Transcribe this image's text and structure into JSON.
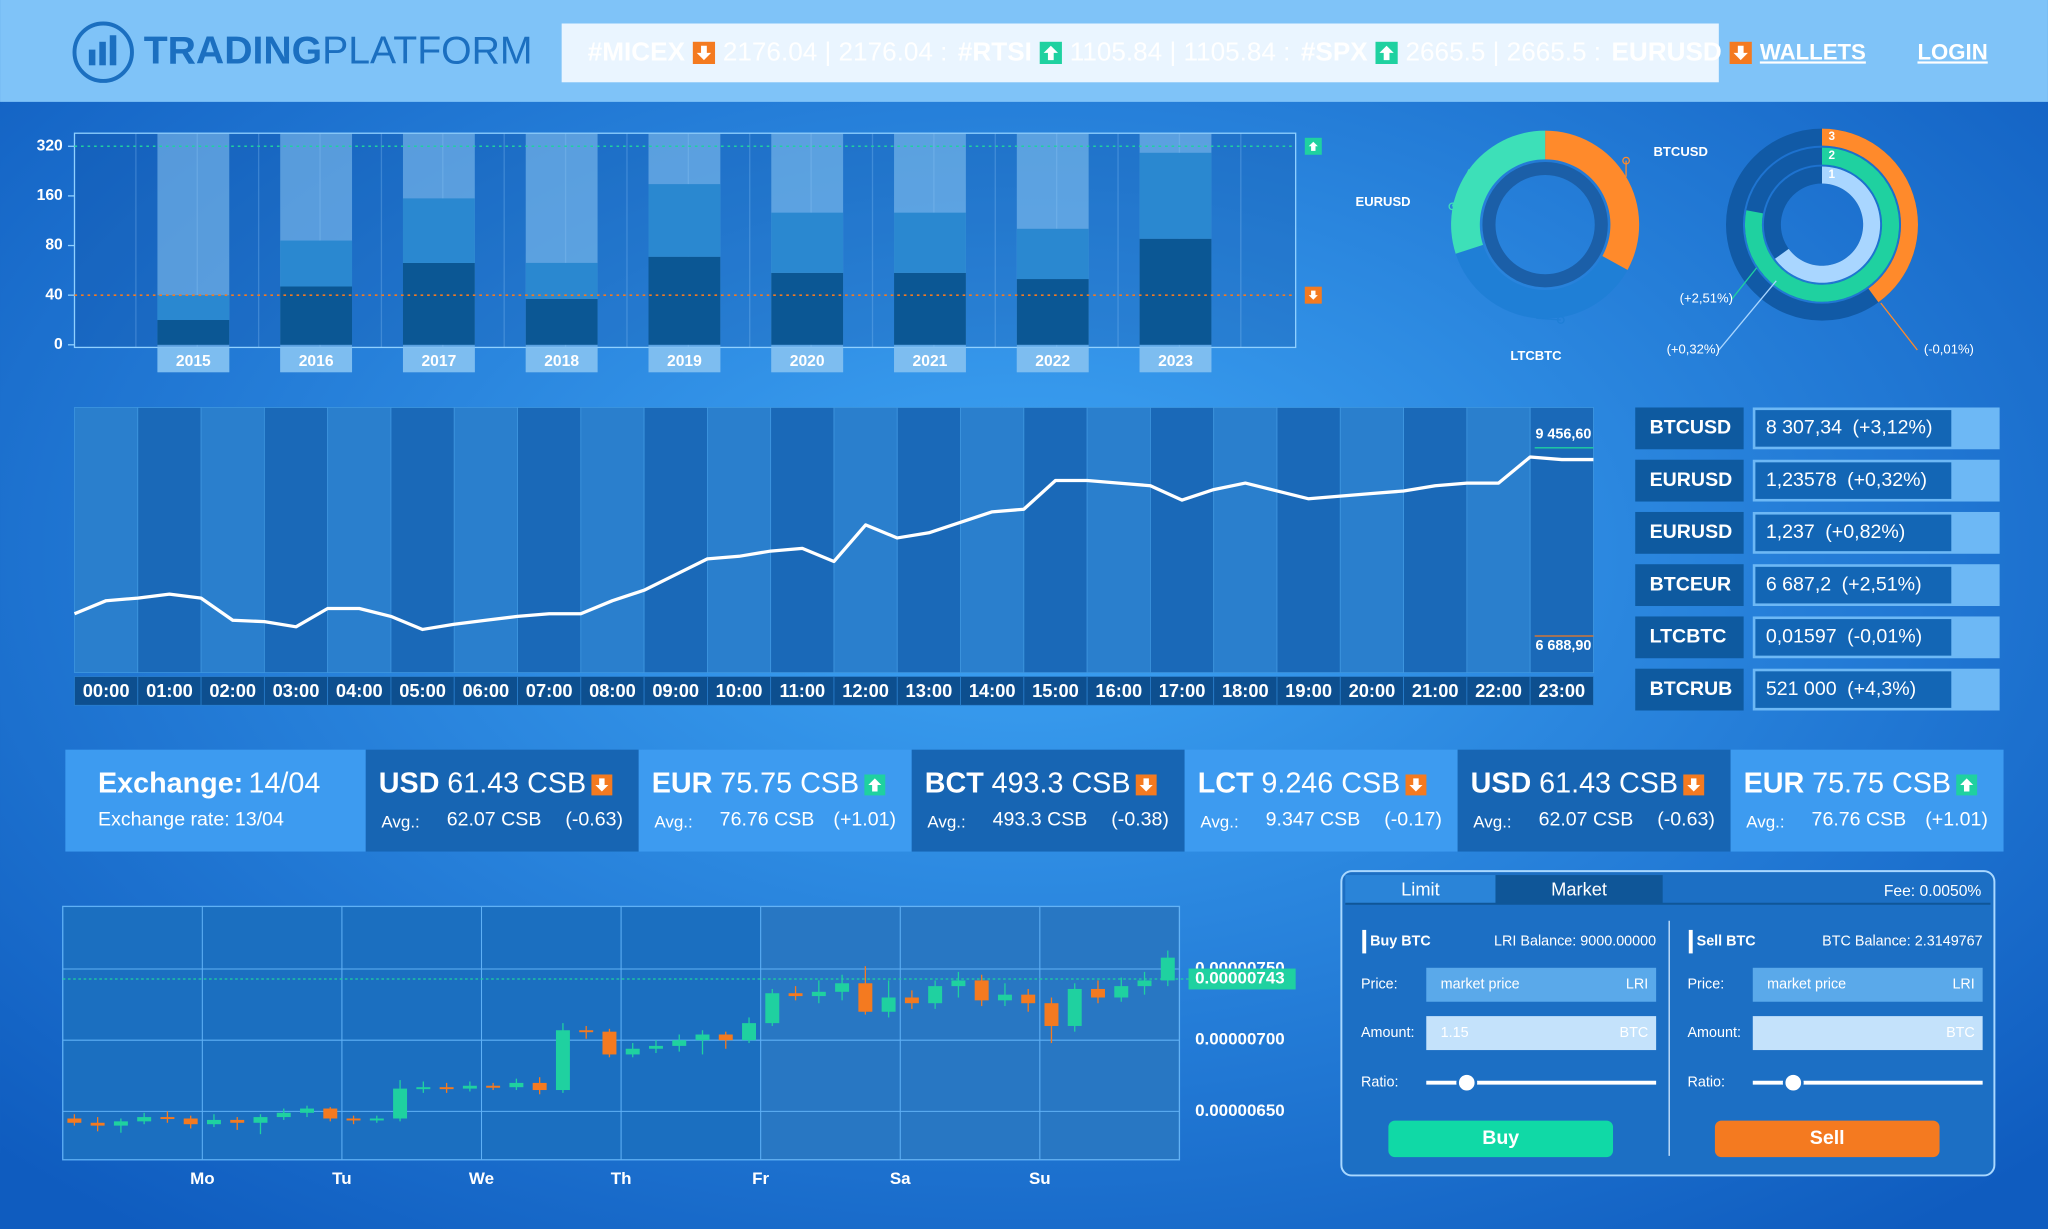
{
  "header": {
    "brand": {
      "bold": "TRADING",
      "light": "PLATFORM"
    },
    "ticker": [
      {
        "symbol": "#MICEX",
        "trend": "down",
        "value": "2176.04 | 2176.04 :"
      },
      {
        "symbol": "#RTSI",
        "trend": "up",
        "value": "1105.84 | 1105.84 :"
      },
      {
        "symbol": "#SPX",
        "trend": "up",
        "value": "2665.5 | 2665.5 :"
      },
      {
        "symbol": "EURUSD",
        "trend": "down"
      }
    ],
    "nav": [
      "WALLETS",
      "LOGIN"
    ]
  },
  "trend_colors": {
    "up": "#1fd1a0",
    "down": "#f47a20"
  },
  "bar_chart": {
    "type": "bar",
    "stacked": true,
    "scale": "piecewise",
    "categories": [
      "2015",
      "2016",
      "2017",
      "2018",
      "2019",
      "2020",
      "2021",
      "2022",
      "2023"
    ],
    "series": [
      {
        "color": "#0b5794",
        "values": [
          20,
          47,
          66,
          37,
          71,
          58,
          58,
          53,
          91
        ]
      },
      {
        "color": "#2a88d0",
        "values": [
          20,
          41,
          90,
          29,
          127,
          75,
          75,
          54,
          208
        ]
      }
    ],
    "ylim": [
      0,
      320
    ],
    "yticks": [
      0,
      40,
      80,
      160,
      320
    ],
    "reference_lines": [
      {
        "value": 320,
        "trend": "up"
      },
      {
        "value": 40,
        "trend": "down"
      }
    ]
  },
  "donut_chart": {
    "type": "pie",
    "categories": [
      "BTCUSD",
      "LTCBTC",
      "EURUSD"
    ],
    "values": [
      33,
      37,
      30
    ],
    "colors": [
      "#ff8a2b",
      "#1f7fd6",
      "#3de0b8"
    ]
  },
  "ring_chart": {
    "type": "radial",
    "range": [
      0,
      100
    ],
    "rings": [
      {
        "label": "3",
        "value": 40,
        "color": "#ff8a2b",
        "note": "(-0,01%)"
      },
      {
        "label": "2",
        "value": 78,
        "color": "#1fd1a0",
        "note": "(+2,51%)"
      },
      {
        "label": "1",
        "value": 65,
        "color": "#a9d6ff",
        "note": "(+0,32%)"
      }
    ]
  },
  "line_chart": {
    "type": "line",
    "color": "#ffffff",
    "highlight": 1,
    "categories": [
      "00:00",
      "01:00",
      "02:00",
      "03:00",
      "04:00",
      "05:00",
      "06:00",
      "07:00",
      "08:00",
      "09:00",
      "10:00",
      "11:00",
      "12:00",
      "13:00",
      "14:00",
      "15:00",
      "16:00",
      "17:00",
      "18:00",
      "19:00",
      "20:00",
      "21:00",
      "22:00",
      "23:00"
    ],
    "x": [
      0,
      0.5,
      1,
      1.5,
      2,
      2.5,
      3,
      3.5,
      4,
      4.5,
      5,
      5.5,
      6,
      6.5,
      7,
      7.5,
      8,
      8.5,
      9,
      9.5,
      10,
      10.5,
      11,
      11.5,
      12,
      12.5,
      13,
      13.5,
      14,
      14.5,
      15,
      15.5,
      16,
      16.5,
      17,
      17.5,
      18,
      18.5,
      19,
      19.5,
      20,
      20.5,
      21,
      21.5,
      22,
      22.5,
      23,
      23.5,
      24
    ],
    "values": [
      7016,
      7208,
      7246,
      7304,
      7246,
      6920,
      6900,
      6824,
      7093,
      7093,
      6977,
      6785,
      6862,
      6920,
      6977,
      7016,
      7016,
      7208,
      7362,
      7592,
      7823,
      7861,
      7938,
      7977,
      7785,
      8323,
      8131,
      8207,
      8361,
      8515,
      8553,
      8976,
      8976,
      8938,
      8899,
      8688,
      8842,
      8938,
      8822,
      8707,
      8746,
      8784,
      8822,
      8899,
      8938,
      8938,
      9322,
      9284,
      9284
    ],
    "xlim": [
      0,
      24
    ],
    "ylim": [
      6150,
      10050
    ],
    "yticks": [
      {
        "value": 6688.9,
        "label": "6 688,90"
      },
      {
        "value": 9456.6,
        "label": "9 456,60"
      }
    ],
    "ytick_colors": [
      "#f47a20",
      "#1fd1a0"
    ]
  },
  "rates": {
    "selected": 0,
    "rows": [
      {
        "pair": "BTCUSD",
        "price": "8 307,34",
        "change": "(+3,12%)",
        "trend": "up"
      },
      {
        "pair": "EURUSD",
        "price": "1,23578",
        "change": "(+0,32%)",
        "trend": "down"
      },
      {
        "pair": "EURUSD",
        "price": "1,237",
        "change": "(+0,82%)",
        "trend": "up"
      },
      {
        "pair": "BTCEUR",
        "price": "6 687,2",
        "change": "(+2,51%)",
        "trend": "up"
      },
      {
        "pair": "LTCBTC",
        "price": "0,01597",
        "change": "(-0,01%)",
        "trend": "down"
      },
      {
        "pair": "BTCRUB",
        "price": "521 000",
        "change": "(+4,3%)",
        "trend": "up"
      }
    ]
  },
  "exchange": {
    "title": {
      "label": "Exchange:",
      "date": "14/04"
    },
    "rate": {
      "label": "Exchange rate:",
      "date": "13/04"
    },
    "cards": [
      {
        "currency": "USD",
        "price": "61.43 CSB",
        "trend": "down",
        "color": "#ffffff",
        "avg_label": "Avg.:",
        "avg": "62.07 CSB",
        "change": "(-0.63)"
      },
      {
        "currency": "EUR",
        "price": "75.75 CSB",
        "trend": "up",
        "color": "#4fd6b0",
        "avg_label": "Avg.:",
        "avg": "76.76 CSB",
        "change": "(+1.01)"
      },
      {
        "currency": "BCT",
        "price": "493.3 CSB",
        "trend": "down",
        "color": "#f47a20",
        "avg_label": "Avg.:",
        "avg": "493.3 CSB",
        "change": "(-0.38)"
      },
      {
        "currency": "LCT",
        "price": "9.246 CSB",
        "trend": "down",
        "color": "#f59a50",
        "avg_label": "Avg.:",
        "avg": "9.347 CSB",
        "change": "(-0.17)"
      },
      {
        "currency": "USD",
        "price": "61.43 CSB",
        "trend": "down",
        "color": "#ffffff",
        "avg_label": "Avg.:",
        "avg": "62.07 CSB",
        "change": "(-0.63)"
      },
      {
        "currency": "EUR",
        "price": "75.75 CSB",
        "trend": "up",
        "color": "#4fd6b0",
        "avg_label": "Avg.:",
        "avg": "76.76 CSB",
        "change": "(+1.01)"
      }
    ]
  },
  "candle_chart": {
    "type": "candlestick",
    "categories": [
      "Mo",
      "Tu",
      "We",
      "Th",
      "Fr",
      "Sa",
      "Su"
    ],
    "open": [
      6.45e-06,
      6.42e-06,
      6.4e-06,
      6.43e-06,
      6.46e-06,
      6.45e-06,
      6.41e-06,
      6.44e-06,
      6.42e-06,
      6.46e-06,
      6.49e-06,
      6.52e-06,
      6.45e-06,
      6.44e-06,
      6.45e-06,
      6.66e-06,
      6.67e-06,
      6.66e-06,
      6.68e-06,
      6.67e-06,
      6.7e-06,
      6.65e-06,
      7.07e-06,
      7.06e-06,
      6.9e-06,
      6.94e-06,
      6.96e-06,
      7e-06,
      7.04e-06,
      7e-06,
      7.12e-06,
      7.33e-06,
      7.31e-06,
      7.34e-06,
      7.4e-06,
      7.2e-06,
      7.3e-06,
      7.26e-06,
      7.38e-06,
      7.42e-06,
      7.28e-06,
      7.32e-06,
      7.26e-06,
      7.1e-06,
      7.36e-06,
      7.3e-06,
      7.38e-06,
      7.42e-06
    ],
    "high": [
      6.48e-06,
      6.46e-06,
      6.45e-06,
      6.49e-06,
      6.5e-06,
      6.47e-06,
      6.48e-06,
      6.46e-06,
      6.48e-06,
      6.52e-06,
      6.54e-06,
      6.53e-06,
      6.47e-06,
      6.47e-06,
      6.72e-06,
      6.71e-06,
      6.7e-06,
      6.71e-06,
      6.7e-06,
      6.73e-06,
      6.74e-06,
      7.12e-06,
      7.1e-06,
      7.08e-06,
      6.98e-06,
      7e-06,
      7.04e-06,
      7.07e-06,
      7.06e-06,
      7.16e-06,
      7.36e-06,
      7.38e-06,
      7.42e-06,
      7.46e-06,
      7.52e-06,
      7.42e-06,
      7.35e-06,
      7.42e-06,
      7.48e-06,
      7.46e-06,
      7.4e-06,
      7.36e-06,
      7.3e-06,
      7.4e-06,
      7.42e-06,
      7.44e-06,
      7.48e-06,
      7.63e-06
    ],
    "low": [
      6.4e-06,
      6.36e-06,
      6.35e-06,
      6.41e-06,
      6.42e-06,
      6.38e-06,
      6.39e-06,
      6.37e-06,
      6.34e-06,
      6.44e-06,
      6.46e-06,
      6.43e-06,
      6.41e-06,
      6.42e-06,
      6.43e-06,
      6.63e-06,
      6.63e-06,
      6.64e-06,
      6.65e-06,
      6.65e-06,
      6.62e-06,
      6.63e-06,
      7.01e-06,
      6.88e-06,
      6.88e-06,
      6.91e-06,
      6.92e-06,
      6.9e-06,
      6.94e-06,
      6.98e-06,
      7.1e-06,
      7.28e-06,
      7.26e-06,
      7.28e-06,
      7.18e-06,
      7.16e-06,
      7.22e-06,
      7.22e-06,
      7.3e-06,
      7.24e-06,
      7.24e-06,
      7.2e-06,
      6.98e-06,
      7.06e-06,
      7.26e-06,
      7.27e-06,
      7.32e-06,
      7.38e-06
    ],
    "close": [
      6.42e-06,
      6.4e-06,
      6.43e-06,
      6.46e-06,
      6.45e-06,
      6.41e-06,
      6.44e-06,
      6.42e-06,
      6.46e-06,
      6.49e-06,
      6.52e-06,
      6.45e-06,
      6.44e-06,
      6.45e-06,
      6.66e-06,
      6.67e-06,
      6.66e-06,
      6.68e-06,
      6.67e-06,
      6.7e-06,
      6.65e-06,
      7.07e-06,
      7.06e-06,
      6.9e-06,
      6.94e-06,
      6.96e-06,
      7e-06,
      7.04e-06,
      7e-06,
      7.12e-06,
      7.33e-06,
      7.31e-06,
      7.34e-06,
      7.4e-06,
      7.2e-06,
      7.3e-06,
      7.26e-06,
      7.38e-06,
      7.42e-06,
      7.28e-06,
      7.32e-06,
      7.26e-06,
      7.1e-06,
      7.36e-06,
      7.3e-06,
      7.38e-06,
      7.42e-06,
      7.58e-06
    ],
    "ylim": [
      6.16e-06,
      7.94e-06
    ],
    "yticks": [
      {
        "value": 6.5e-06,
        "label": "0.00000650"
      },
      {
        "value": 7e-06,
        "label": "0.00000700"
      },
      {
        "value": 7.5e-06,
        "label": "0.00000750"
      }
    ],
    "last_price": {
      "value": 7.43e-06,
      "label": "0.00000743"
    }
  },
  "order_form": {
    "tabs": [
      "Limit",
      "Market"
    ],
    "active_tab": 1,
    "fee": "Fee: 0.0050%",
    "buy": {
      "title": "Buy BTC",
      "balance": "LRI Balance: 9000.00000",
      "color": "#10d9a6",
      "button": "Buy",
      "fields": [
        {
          "label": "Price:",
          "placeholder": "market price",
          "unit": "LRI"
        },
        {
          "label": "Amount:",
          "value": "1.15",
          "unit": "BTC"
        },
        {
          "label": "Ratio:"
        }
      ]
    },
    "sell": {
      "title": "Sell BTC",
      "balance": "BTC Balance: 2.3149767",
      "color": "#f47a20",
      "button": "Sell",
      "fields": [
        {
          "label": "Price:",
          "placeholder": "market price",
          "unit": "LRI"
        },
        {
          "label": "Amount:",
          "unit": "BTC"
        },
        {
          "label": "Ratio:"
        }
      ]
    }
  }
}
